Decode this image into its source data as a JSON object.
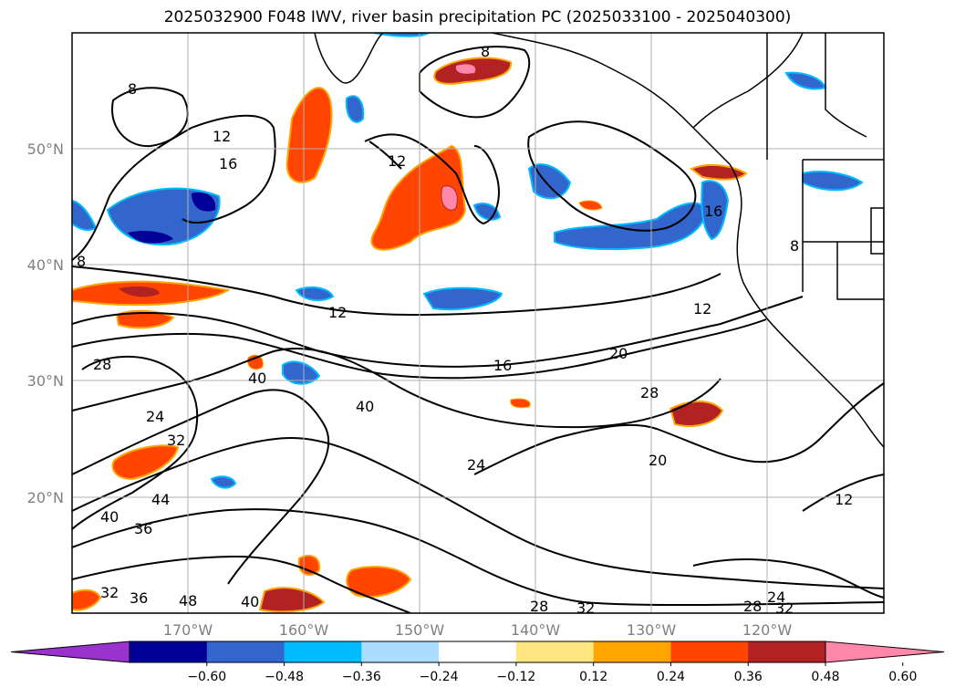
{
  "title": "2025032900 F048 IWV, river basin precipitation PC (2025033100 - 2025040300)",
  "lat_labels": [
    "50°N",
    "40°N",
    "30°N",
    "20°N"
  ],
  "lon_labels": [
    "170°W",
    "160°W",
    "150°W",
    "140°W",
    "130°W",
    "120°W"
  ],
  "contour_labels": [
    "8",
    "12",
    "16",
    "20",
    "24",
    "28",
    "32",
    "36",
    "40",
    "44",
    "48"
  ],
  "colorbar": {
    "ticks": [
      "−0.60",
      "−0.48",
      "−0.36",
      "−0.24",
      "−0.12",
      "0.12",
      "0.24",
      "0.36",
      "0.48",
      "0.60"
    ],
    "colors": [
      "#9933cc",
      "#000099",
      "#3366cc",
      "#00bbff",
      "#aaddff",
      "#ffffff",
      "#ffe680",
      "#ffa500",
      "#ff4500",
      "#b22222",
      "#ff88aa"
    ]
  },
  "colors": {
    "contour": "#000000",
    "grid": "#b0b0b0",
    "coast": "#000000"
  }
}
